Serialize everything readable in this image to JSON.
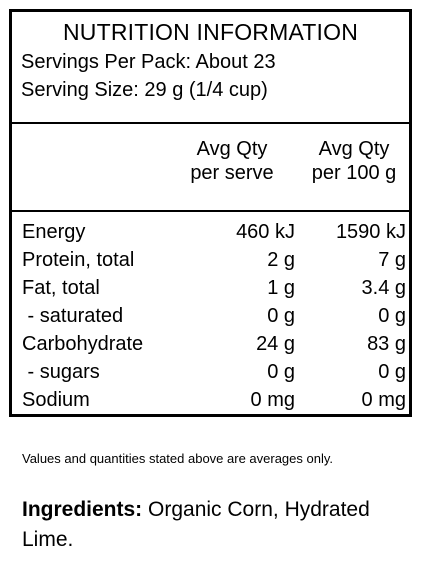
{
  "panel": {
    "title": "NUTRITION INFORMATION",
    "servings_per_pack": "Servings Per Pack: About 23",
    "serving_size": "Serving Size: 29 g (1/4 cup)"
  },
  "columns": {
    "per_serve": [
      "Avg Qty",
      "per serve"
    ],
    "per_100g": [
      "Avg Qty",
      "per 100 g"
    ]
  },
  "rows": [
    {
      "name": "Energy",
      "per_serve": "460 kJ",
      "per_100g": "1590 kJ"
    },
    {
      "name": "Protein, total",
      "per_serve": "2 g",
      "per_100g": "7 g"
    },
    {
      "name": "Fat, total",
      "per_serve": "1 g",
      "per_100g": "3.4 g"
    },
    {
      "name": " - saturated",
      "per_serve": "0 g",
      "per_100g": "0 g"
    },
    {
      "name": "Carbohydrate",
      "per_serve": "24 g",
      "per_100g": "83 g"
    },
    {
      "name": " - sugars",
      "per_serve": "0 g",
      "per_100g": "0 g"
    },
    {
      "name": "Sodium",
      "per_serve": "0 mg",
      "per_100g": "0 mg"
    }
  ],
  "footnote": "Values and quantities stated above are averages only.",
  "ingredients": {
    "label": "Ingredients:",
    "text": " Organic Corn, Hydrated Lime."
  }
}
